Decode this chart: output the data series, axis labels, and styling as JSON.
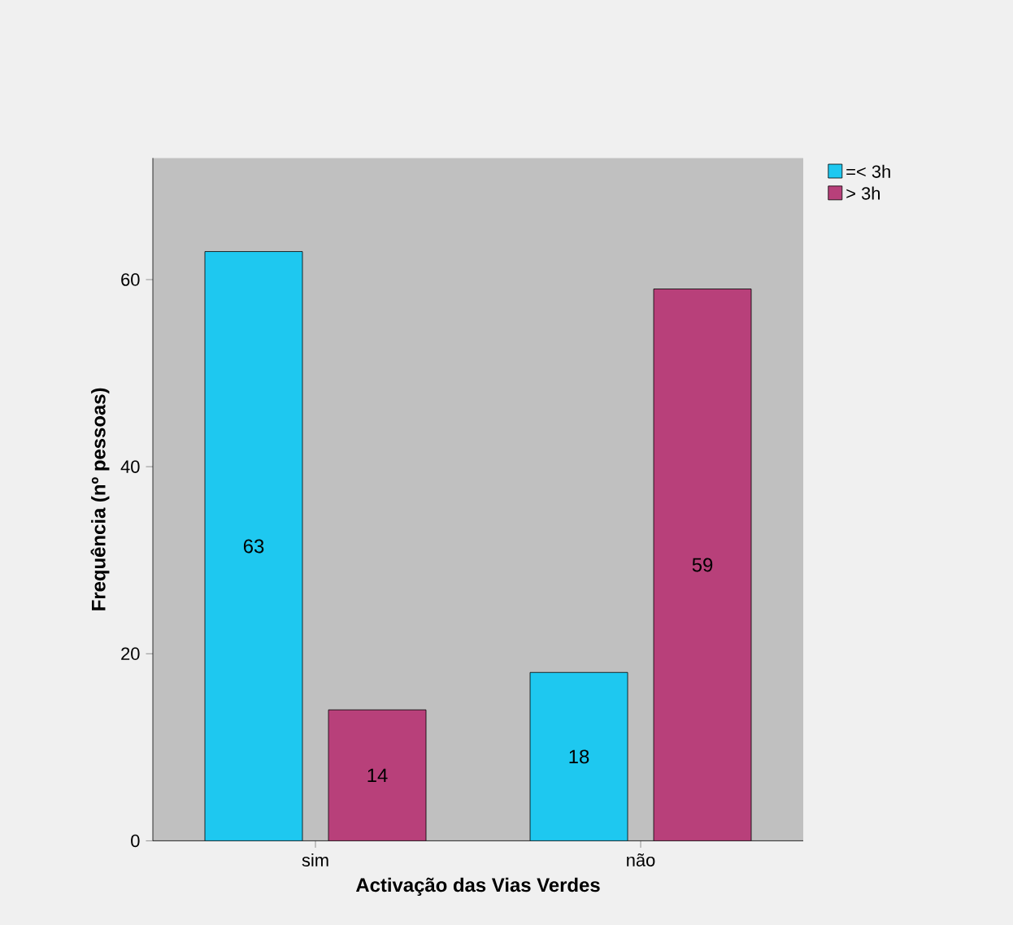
{
  "chart_data": {
    "type": "bar",
    "xlabel": "Activação das Vias Verdes",
    "ylabel": "Frequência (nº pessoas)",
    "categories": [
      "sim",
      "não"
    ],
    "series": [
      {
        "name": "=< 3h",
        "color": "#1ec8f0",
        "values": [
          63,
          18
        ]
      },
      {
        "name": "> 3h",
        "color": "#b8407a",
        "values": [
          14,
          59
        ]
      }
    ],
    "ylim": [
      0,
      73
    ],
    "yticks": [
      0,
      20,
      40,
      60
    ],
    "data_labels": true,
    "legend": "top right"
  }
}
